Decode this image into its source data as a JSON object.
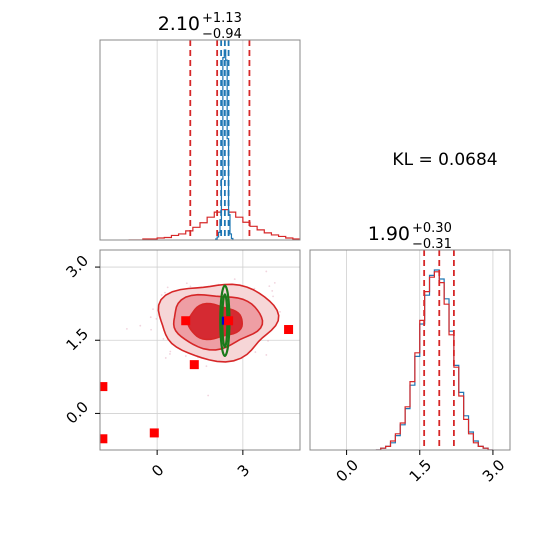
{
  "chart_data": [
    {
      "type": "histogram",
      "panel": "marginal-param-1",
      "title": {
        "value": "2.10",
        "plus": "+1.13",
        "minus": "−0.94"
      },
      "x_range": [
        -2.0,
        5.0
      ],
      "grid": true,
      "quantiles_red": [
        1.16,
        2.1,
        3.23
      ],
      "quantiles_blue": [
        2.24,
        2.37,
        2.5
      ],
      "series": [
        {
          "color": "#d62728",
          "bin_edges": [
            -1.0,
            -0.5,
            0.0,
            0.25,
            0.5,
            0.75,
            1.0,
            1.25,
            1.5,
            1.75,
            2.0,
            2.25,
            2.5,
            2.75,
            3.0,
            3.25,
            3.5,
            3.75,
            4.0,
            4.25,
            4.5,
            4.75,
            5.0
          ],
          "counts": [
            0.0,
            0.02,
            0.04,
            0.05,
            0.09,
            0.12,
            0.18,
            0.25,
            0.34,
            0.45,
            0.55,
            0.6,
            0.55,
            0.45,
            0.35,
            0.27,
            0.2,
            0.14,
            0.1,
            0.07,
            0.04,
            0.02
          ]
        },
        {
          "color": "#1f77b4",
          "bin_edges": [
            2.05,
            2.1,
            2.15,
            2.2,
            2.25,
            2.3,
            2.35,
            2.4,
            2.45,
            2.5,
            2.55,
            2.6,
            2.65
          ],
          "counts": [
            0.02,
            0.06,
            0.15,
            0.4,
            1.2,
            3.6,
            3.75,
            3.55,
            2.0,
            0.5,
            0.12,
            0.03
          ]
        }
      ]
    },
    {
      "type": "text",
      "panel": "kl-annotation",
      "text": "KL = 0.0684"
    },
    {
      "type": "contour",
      "panel": "joint",
      "x_range": [
        -2.0,
        5.0
      ],
      "y_range": [
        -0.75,
        3.35
      ],
      "x_ticks": [
        "0",
        "3"
      ],
      "y_ticks": [
        "0.0",
        "1.5",
        "3.0"
      ],
      "grid": true,
      "contour_levels_red": [
        {
          "cx": 2.1,
          "cy": 1.9,
          "rx": 2.05,
          "ry": 0.78,
          "fill": "#f6d6d7"
        },
        {
          "cx": 2.05,
          "cy": 1.9,
          "rx": 1.55,
          "ry": 0.55,
          "fill": "#ee9ea4"
        },
        {
          "cx": 2.0,
          "cy": 1.88,
          "rx": 0.95,
          "ry": 0.35,
          "fill": "#d52a32"
        }
      ],
      "contour_green": {
        "cx": 2.37,
        "cy": 1.9,
        "rx": 0.16,
        "ry": 0.72
      },
      "best_blue": {
        "x": 2.37,
        "y": 1.9
      },
      "points": [
        {
          "x": 1.0,
          "y": 1.9
        },
        {
          "x": 2.5,
          "y": 1.9
        },
        {
          "x": 1.3,
          "y": 1.0
        },
        {
          "x": 4.6,
          "y": 1.72
        },
        {
          "x": -1.9,
          "y": 0.55
        },
        {
          "x": -0.1,
          "y": -0.4
        },
        {
          "x": -1.9,
          "y": -0.52
        }
      ]
    },
    {
      "type": "histogram",
      "panel": "marginal-param-2",
      "title": {
        "value": "1.90",
        "plus": "+0.30",
        "minus": "−0.31"
      },
      "x_range": [
        -0.75,
        3.35
      ],
      "x_ticks": [
        "0.0",
        "1.5",
        "3.0"
      ],
      "grid": true,
      "quantiles_red": [
        1.59,
        1.9,
        2.2
      ],
      "series": [
        {
          "color": "#1f77b4",
          "bin_edges": [
            0.6,
            0.7,
            0.8,
            0.9,
            1.0,
            1.1,
            1.2,
            1.3,
            1.4,
            1.5,
            1.6,
            1.7,
            1.8,
            1.9,
            2.0,
            2.1,
            2.2,
            2.3,
            2.4,
            2.5,
            2.6,
            2.7,
            2.8,
            2.9,
            3.0
          ],
          "counts": [
            0.0,
            0.01,
            0.02,
            0.04,
            0.08,
            0.14,
            0.23,
            0.36,
            0.52,
            0.7,
            0.86,
            0.97,
            1.0,
            0.95,
            0.84,
            0.66,
            0.47,
            0.32,
            0.19,
            0.1,
            0.05,
            0.02,
            0.01,
            0.0
          ]
        },
        {
          "color": "#d62728",
          "bin_edges": [
            0.6,
            0.7,
            0.8,
            0.9,
            1.0,
            1.1,
            1.2,
            1.3,
            1.4,
            1.5,
            1.6,
            1.7,
            1.8,
            1.9,
            2.0,
            2.1,
            2.2,
            2.3,
            2.4,
            2.5,
            2.6,
            2.7,
            2.8,
            2.9,
            3.0
          ],
          "counts": [
            0.0,
            0.01,
            0.02,
            0.05,
            0.09,
            0.15,
            0.24,
            0.38,
            0.54,
            0.72,
            0.88,
            0.96,
            0.99,
            0.93,
            0.81,
            0.64,
            0.46,
            0.3,
            0.17,
            0.09,
            0.04,
            0.02,
            0.01,
            0.0
          ]
        }
      ]
    }
  ]
}
